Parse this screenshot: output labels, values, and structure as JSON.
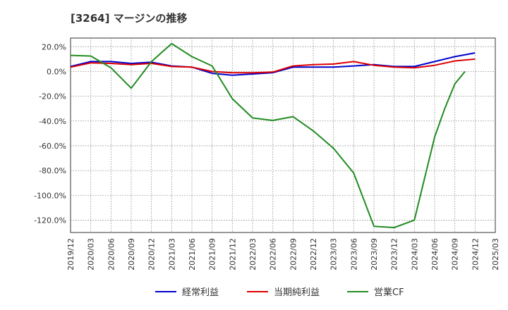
{
  "chart_data": {
    "type": "line",
    "title": "[3264]  マージンの推移",
    "xlabel": "",
    "ylabel": "",
    "ylim": [
      -130,
      27
    ],
    "y_ticks": [
      "20.0%",
      "0.0%",
      "-20.0%",
      "-40.0%",
      "-60.0%",
      "-80.0%",
      "-100.0%",
      "-120.0%"
    ],
    "y_tick_values": [
      20,
      0,
      -20,
      -40,
      -60,
      -80,
      -100,
      -120
    ],
    "x_ticks": [
      "2019/12",
      "2020/03",
      "2020/06",
      "2020/09",
      "2020/12",
      "2021/03",
      "2021/06",
      "2021/09",
      "2021/12",
      "2022/03",
      "2022/06",
      "2022/09",
      "2022/12",
      "2023/03",
      "2023/06",
      "2023/09",
      "2023/12",
      "2024/03",
      "2024/06",
      "2024/09",
      "2024/12",
      "2025/03"
    ],
    "grid": true,
    "legend_position": "bottom",
    "series": [
      {
        "name": "経常利益",
        "color": "#0000cc",
        "values": [
          4,
          8,
          8,
          6.5,
          7.5,
          4.5,
          3.5,
          -1.5,
          -3,
          -2,
          -1,
          3.5,
          3.5,
          3.5,
          4.5,
          5.5,
          4,
          4,
          8,
          12,
          15
        ]
      },
      {
        "name": "当期純利益",
        "color": "#dd0000",
        "values": [
          3.5,
          7,
          6.5,
          5.5,
          6.5,
          4,
          3.5,
          0,
          -1,
          -1,
          -0.5,
          4.5,
          5.5,
          6,
          8,
          5,
          3.5,
          3,
          5,
          8.5,
          10
        ]
      },
      {
        "name": "営業CF",
        "color": "#228b22",
        "values": [
          13,
          12.5,
          3,
          -13.5,
          8,
          22.5,
          12,
          4.5,
          -22,
          -37.5,
          -39.5,
          -36.5,
          -48,
          -62,
          -82,
          -125,
          -126,
          -120,
          -53,
          -30,
          -10,
          0
        ]
      }
    ],
    "series_x_index": [
      [
        0,
        1,
        2,
        3,
        4,
        5,
        6,
        7,
        8,
        9,
        10,
        11,
        12,
        13,
        14,
        15,
        16,
        17,
        18,
        19,
        20
      ],
      [
        0,
        1,
        2,
        3,
        4,
        5,
        6,
        7,
        8,
        9,
        10,
        11,
        12,
        13,
        14,
        15,
        16,
        17,
        18,
        19,
        20
      ],
      [
        0,
        1,
        2,
        3,
        4,
        5,
        6,
        7,
        8,
        9,
        10,
        11,
        12,
        13,
        14,
        15,
        16,
        17,
        18,
        18.5,
        19,
        19.5
      ]
    ]
  }
}
